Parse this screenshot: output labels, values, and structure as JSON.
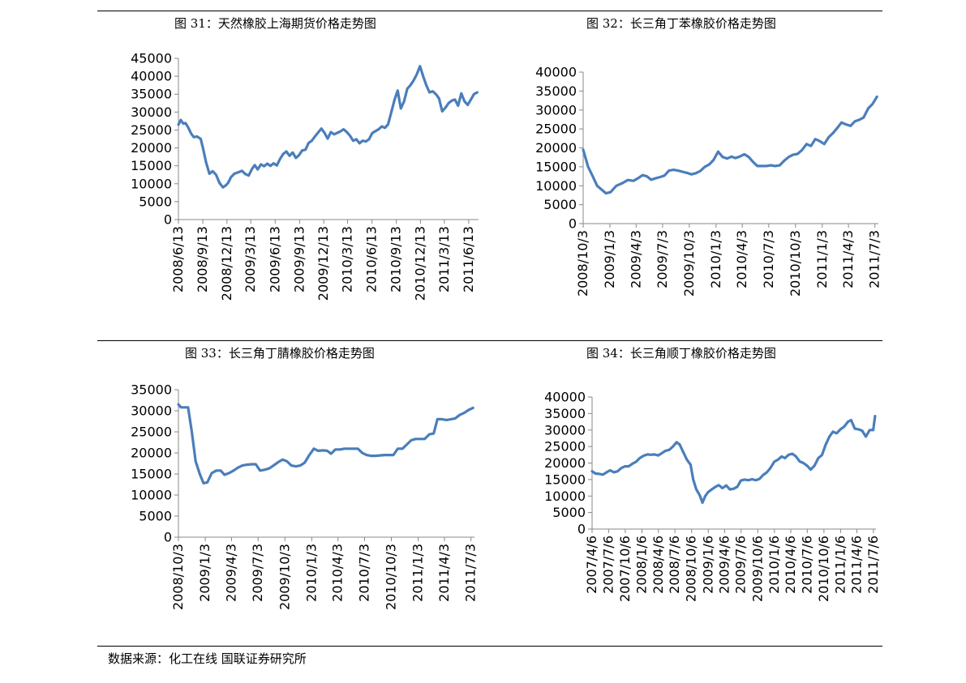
{
  "page": {
    "footer_label": "数据来源：化工在线  国联证券研究所"
  },
  "style": {
    "line_color": "#4a7ebb",
    "axis_color": "#888888",
    "text_color": "#000000"
  },
  "chart_data": [
    {
      "type": "line",
      "title": "图 31：天然橡胶上海期货价格走势图",
      "xlabel": "",
      "ylabel": "",
      "grid": false,
      "legend": "none",
      "ylim": [
        0,
        45000
      ],
      "yticks": [
        0,
        5000,
        10000,
        15000,
        20000,
        25000,
        30000,
        35000,
        40000,
        45000
      ],
      "xlim": [
        "2008-06-13",
        "2011-07-20"
      ],
      "xticks": [
        "2008-06-13",
        "2008-09-13",
        "2008-12-13",
        "2009-03-13",
        "2009-06-13",
        "2009-09-13",
        "2009-12-13",
        "2010-03-13",
        "2010-06-13",
        "2010-09-13",
        "2010-12-13",
        "2011-03-13",
        "2011-06-13"
      ],
      "xtick_labels": [
        "2008/6/13",
        "2008/9/13",
        "2008/12/13",
        "2009/3/13",
        "2009/6/13",
        "2009/9/13",
        "2009/12/13",
        "2010/3/13",
        "2010/6/13",
        "2010/9/13",
        "2010/12/13",
        "2011/3/13",
        "2011/6/13"
      ],
      "series": [
        {
          "x": [
            "2008-06-13",
            "2008-06-22",
            "2008-07-01",
            "2008-07-10",
            "2008-07-19",
            "2008-07-31",
            "2008-08-10",
            "2008-08-22",
            "2008-09-05",
            "2008-09-15",
            "2008-09-25",
            "2008-10-08",
            "2008-10-20",
            "2008-11-02",
            "2008-11-15",
            "2008-11-28",
            "2008-12-10",
            "2008-12-18",
            "2008-12-28",
            "2009-01-10",
            "2009-01-25",
            "2009-02-08",
            "2009-02-20",
            "2009-03-05",
            "2009-03-18",
            "2009-03-28",
            "2009-04-08",
            "2009-04-20",
            "2009-05-02",
            "2009-05-14",
            "2009-05-26",
            "2009-06-07",
            "2009-06-19",
            "2009-07-01",
            "2009-07-13",
            "2009-07-25",
            "2009-08-06",
            "2009-08-18",
            "2009-08-30",
            "2009-09-11",
            "2009-09-23",
            "2009-10-05",
            "2009-10-17",
            "2009-10-29",
            "2009-11-10",
            "2009-11-22",
            "2009-12-04",
            "2009-12-16",
            "2009-12-28",
            "2010-01-09",
            "2010-01-21",
            "2010-02-02",
            "2010-02-14",
            "2010-02-26",
            "2010-03-10",
            "2010-03-22",
            "2010-04-03",
            "2010-04-15",
            "2010-04-27",
            "2010-05-09",
            "2010-05-21",
            "2010-06-02",
            "2010-06-14",
            "2010-06-26",
            "2010-07-08",
            "2010-07-20",
            "2010-08-01",
            "2010-08-13",
            "2010-08-25",
            "2010-09-06",
            "2010-09-18",
            "2010-09-30",
            "2010-10-12",
            "2010-10-24",
            "2010-11-05",
            "2010-11-17",
            "2010-11-29",
            "2010-12-11",
            "2010-12-23",
            "2011-01-04",
            "2011-01-16",
            "2011-01-28",
            "2011-02-09",
            "2011-02-21",
            "2011-03-05",
            "2011-03-17",
            "2011-03-29",
            "2011-04-10",
            "2011-04-22",
            "2011-05-04",
            "2011-05-16",
            "2011-05-28",
            "2011-06-09",
            "2011-06-21",
            "2011-07-03",
            "2011-07-15"
          ],
          "values": [
            26500,
            27800,
            26800,
            26900,
            25800,
            24000,
            23000,
            23200,
            22500,
            19500,
            16000,
            12800,
            13500,
            12500,
            10200,
            9000,
            9600,
            10300,
            11800,
            12800,
            13200,
            13600,
            12700,
            12300,
            14200,
            15200,
            14000,
            15400,
            14900,
            15600,
            15000,
            15700,
            15100,
            16900,
            18300,
            19000,
            17800,
            18700,
            17200,
            18000,
            19300,
            19500,
            21400,
            22000,
            23200,
            24300,
            25400,
            24200,
            22600,
            24400,
            23800,
            24200,
            24600,
            25200,
            24400,
            23400,
            22000,
            22400,
            21300,
            22000,
            21800,
            22400,
            24100,
            24700,
            25200,
            26000,
            25600,
            26600,
            30000,
            33400,
            36000,
            31000,
            33000,
            36500,
            37500,
            38800,
            40500,
            42800,
            40000,
            37500,
            35500,
            35800,
            35000,
            33800,
            30200,
            31200,
            32500,
            33200,
            33500,
            31800,
            35200,
            33000,
            32000,
            33500,
            35000,
            35500
          ]
        }
      ]
    },
    {
      "type": "line",
      "title": "图 32：长三角丁苯橡胶价格走势图",
      "xlabel": "",
      "ylabel": "",
      "grid": false,
      "legend": "none",
      "ylim": [
        0,
        40000
      ],
      "yticks": [
        0,
        5000,
        10000,
        15000,
        20000,
        25000,
        30000,
        35000,
        40000
      ],
      "xlim": [
        "2008-10-03",
        "2011-07-15"
      ],
      "xticks": [
        "2008-10-03",
        "2009-01-03",
        "2009-04-03",
        "2009-07-03",
        "2009-10-03",
        "2010-01-03",
        "2010-04-03",
        "2010-07-03",
        "2010-10-03",
        "2011-01-03",
        "2011-04-03",
        "2011-07-03"
      ],
      "xtick_labels": [
        "2008/10/3",
        "2009/1/3",
        "2009/4/3",
        "2009/7/3",
        "2009/10/3",
        "2010/1/3",
        "2010/4/3",
        "2010/7/3",
        "2010/10/3",
        "2011/1/3",
        "2011/4/3",
        "2011/7/3"
      ],
      "series": [
        {
          "x": [
            "2008-10-03",
            "2008-10-20",
            "2008-11-05",
            "2008-11-20",
            "2008-12-05",
            "2008-12-20",
            "2009-01-05",
            "2009-01-25",
            "2009-02-15",
            "2009-03-05",
            "2009-03-25",
            "2009-04-10",
            "2009-04-25",
            "2009-05-10",
            "2009-05-25",
            "2009-06-10",
            "2009-06-25",
            "2009-07-10",
            "2009-07-25",
            "2009-08-10",
            "2009-08-25",
            "2009-09-10",
            "2009-09-25",
            "2009-10-10",
            "2009-10-25",
            "2009-11-10",
            "2009-11-25",
            "2009-12-10",
            "2009-12-25",
            "2010-01-10",
            "2010-01-25",
            "2010-02-10",
            "2010-02-25",
            "2010-03-10",
            "2010-03-25",
            "2010-04-10",
            "2010-04-25",
            "2010-05-10",
            "2010-05-25",
            "2010-06-10",
            "2010-06-25",
            "2010-07-10",
            "2010-07-25",
            "2010-08-10",
            "2010-08-25",
            "2010-09-10",
            "2010-09-25",
            "2010-10-10",
            "2010-10-25",
            "2010-11-10",
            "2010-11-25",
            "2010-12-10",
            "2010-12-25",
            "2011-01-10",
            "2011-01-25",
            "2011-02-10",
            "2011-02-25",
            "2011-03-10",
            "2011-03-25",
            "2011-04-10",
            "2011-04-25",
            "2011-05-10",
            "2011-05-25",
            "2011-06-10",
            "2011-06-25",
            "2011-07-10"
          ],
          "values": [
            19500,
            15000,
            12500,
            10000,
            9000,
            8000,
            8300,
            10000,
            10700,
            11500,
            11300,
            12000,
            12800,
            12500,
            11600,
            12000,
            12300,
            12700,
            14000,
            14200,
            14000,
            13700,
            13400,
            13000,
            13300,
            13900,
            15000,
            15600,
            16800,
            19000,
            17600,
            17200,
            17700,
            17300,
            17700,
            18300,
            17600,
            16300,
            15200,
            15200,
            15200,
            15400,
            15200,
            15400,
            16600,
            17600,
            18200,
            18400,
            19400,
            21000,
            20500,
            22300,
            21800,
            21000,
            22800,
            24000,
            25400,
            26700,
            26200,
            25800,
            27000,
            27400,
            28000,
            30400,
            31600,
            33500
          ]
        }
      ]
    },
    {
      "type": "line",
      "title": "图 33：长三角丁腈橡胶价格走势图",
      "xlabel": "",
      "ylabel": "",
      "grid": false,
      "legend": "none",
      "ylim": [
        0,
        35000
      ],
      "yticks": [
        0,
        5000,
        10000,
        15000,
        20000,
        25000,
        30000,
        35000
      ],
      "xlim": [
        "2008-10-03",
        "2011-07-15"
      ],
      "xticks": [
        "2008-10-03",
        "2009-01-03",
        "2009-04-03",
        "2009-07-03",
        "2009-10-03",
        "2010-01-03",
        "2010-04-03",
        "2010-07-03",
        "2010-10-03",
        "2011-01-03",
        "2011-04-03",
        "2011-07-03"
      ],
      "xtick_labels": [
        "2008/10/3",
        "2009/1/3",
        "2009/4/3",
        "2009/7/3",
        "2009/10/3",
        "2010/1/3",
        "2010/4/3",
        "2010/7/3",
        "2010/10/3",
        "2011/1/3",
        "2011/4/3",
        "2011/7/3"
      ],
      "series": [
        {
          "x": [
            "2008-10-03",
            "2008-10-12",
            "2008-10-25",
            "2008-11-05",
            "2008-11-18",
            "2008-12-01",
            "2008-12-15",
            "2008-12-28",
            "2009-01-10",
            "2009-01-25",
            "2009-02-10",
            "2009-02-25",
            "2009-03-10",
            "2009-03-25",
            "2009-04-10",
            "2009-04-25",
            "2009-05-10",
            "2009-05-25",
            "2009-06-10",
            "2009-06-25",
            "2009-07-10",
            "2009-07-25",
            "2009-08-10",
            "2009-08-25",
            "2009-09-10",
            "2009-09-25",
            "2009-10-10",
            "2009-10-25",
            "2009-11-10",
            "2009-11-25",
            "2009-12-10",
            "2009-12-25",
            "2010-01-10",
            "2010-01-25",
            "2010-02-10",
            "2010-02-25",
            "2010-03-10",
            "2010-03-25",
            "2010-04-10",
            "2010-04-25",
            "2010-05-10",
            "2010-05-25",
            "2010-06-10",
            "2010-06-25",
            "2010-07-10",
            "2010-07-25",
            "2010-08-10",
            "2010-08-25",
            "2010-09-10",
            "2010-09-25",
            "2010-10-10",
            "2010-10-25",
            "2010-11-10",
            "2010-11-25",
            "2010-12-10",
            "2010-12-25",
            "2011-01-10",
            "2011-01-25",
            "2011-02-10",
            "2011-02-25",
            "2011-03-10",
            "2011-03-25",
            "2011-04-10",
            "2011-04-25",
            "2011-05-10",
            "2011-05-25",
            "2011-06-10",
            "2011-06-25",
            "2011-07-10"
          ],
          "values": [
            31500,
            30800,
            30800,
            30800,
            25000,
            18000,
            15000,
            12800,
            13000,
            15200,
            15800,
            15800,
            14800,
            15200,
            15800,
            16500,
            17000,
            17200,
            17300,
            17300,
            15800,
            16000,
            16300,
            17000,
            17800,
            18400,
            18000,
            17000,
            16800,
            17000,
            17700,
            19400,
            21000,
            20500,
            20600,
            20500,
            19800,
            20800,
            20800,
            21000,
            21000,
            21000,
            21000,
            20000,
            19500,
            19300,
            19300,
            19400,
            19500,
            19500,
            19500,
            21000,
            21000,
            22000,
            23000,
            23300,
            23300,
            23300,
            24400,
            24600,
            28000,
            28000,
            27800,
            28000,
            28200,
            29000,
            29500,
            30200,
            30700
          ]
        }
      ]
    },
    {
      "type": "line",
      "title": "图 34：长三角顺丁橡胶价格走势图",
      "xlabel": "",
      "ylabel": "",
      "grid": false,
      "legend": "none",
      "ylim": [
        0,
        40000
      ],
      "yticks": [
        0,
        5000,
        10000,
        15000,
        20000,
        25000,
        30000,
        35000,
        40000
      ],
      "xlim": [
        "2007-04-06",
        "2011-07-20"
      ],
      "xticks": [
        "2007-04-06",
        "2007-07-06",
        "2007-10-06",
        "2008-01-06",
        "2008-04-06",
        "2008-07-06",
        "2008-10-06",
        "2009-01-06",
        "2009-04-06",
        "2009-07-06",
        "2009-10-06",
        "2010-01-06",
        "2010-04-06",
        "2010-07-06",
        "2010-10-06",
        "2011-01-06",
        "2011-04-06",
        "2011-07-06"
      ],
      "xtick_labels": [
        "2007/4/6",
        "2007/7/6",
        "2007/10/6",
        "2008/1/6",
        "2008/4/6",
        "2008/7/6",
        "2008/10/6",
        "2009/1/6",
        "2009/4/6",
        "2009/7/6",
        "2009/10/6",
        "2010/1/6",
        "2010/4/6",
        "2010/7/6",
        "2010/10/6",
        "2011/1/6",
        "2011/4/6",
        "2011/7/6"
      ],
      "series": [
        {
          "x": [
            "2007-04-06",
            "2007-04-25",
            "2007-05-15",
            "2007-06-05",
            "2007-06-25",
            "2007-07-15",
            "2007-08-05",
            "2007-08-25",
            "2007-09-15",
            "2007-10-05",
            "2007-10-25",
            "2007-11-15",
            "2007-12-05",
            "2007-12-25",
            "2008-01-15",
            "2008-02-05",
            "2008-02-25",
            "2008-03-15",
            "2008-04-05",
            "2008-04-25",
            "2008-05-15",
            "2008-06-05",
            "2008-06-25",
            "2008-07-15",
            "2008-08-01",
            "2008-08-20",
            "2008-09-10",
            "2008-09-30",
            "2008-10-15",
            "2008-11-01",
            "2008-11-20",
            "2008-12-05",
            "2008-12-20",
            "2009-01-05",
            "2009-01-25",
            "2009-02-15",
            "2009-03-05",
            "2009-03-25",
            "2009-04-15",
            "2009-05-05",
            "2009-05-25",
            "2009-06-15",
            "2009-07-05",
            "2009-07-25",
            "2009-08-15",
            "2009-09-05",
            "2009-09-25",
            "2009-10-15",
            "2009-11-05",
            "2009-11-25",
            "2009-12-15",
            "2010-01-05",
            "2010-01-25",
            "2010-02-15",
            "2010-03-05",
            "2010-03-25",
            "2010-04-15",
            "2010-05-05",
            "2010-05-25",
            "2010-06-15",
            "2010-07-05",
            "2010-07-25",
            "2010-08-15",
            "2010-09-05",
            "2010-09-25",
            "2010-10-15",
            "2010-11-05",
            "2010-11-25",
            "2010-12-15",
            "2011-01-05",
            "2011-01-25",
            "2011-02-15",
            "2011-03-05",
            "2011-03-25",
            "2011-04-15",
            "2011-05-05",
            "2011-05-25",
            "2011-06-15",
            "2011-07-05",
            "2011-07-15"
          ],
          "values": [
            17500,
            16800,
            16700,
            16500,
            17200,
            17800,
            17200,
            17500,
            18500,
            19000,
            19000,
            19800,
            20400,
            21500,
            22200,
            22600,
            22500,
            22600,
            22300,
            23000,
            23700,
            24000,
            25000,
            26300,
            25600,
            23400,
            21000,
            19500,
            15000,
            12000,
            10200,
            8000,
            10000,
            11200,
            12000,
            12800,
            13300,
            12400,
            13200,
            12000,
            12200,
            12800,
            14700,
            15000,
            14800,
            15100,
            14800,
            15200,
            16400,
            17200,
            18500,
            20400,
            21000,
            22000,
            21500,
            22500,
            22800,
            22000,
            20500,
            20000,
            19200,
            18000,
            19200,
            21500,
            22400,
            25500,
            28000,
            29500,
            29000,
            30200,
            31000,
            32500,
            33000,
            30400,
            30200,
            29800,
            28000,
            30000,
            30000,
            34200
          ]
        }
      ]
    }
  ]
}
